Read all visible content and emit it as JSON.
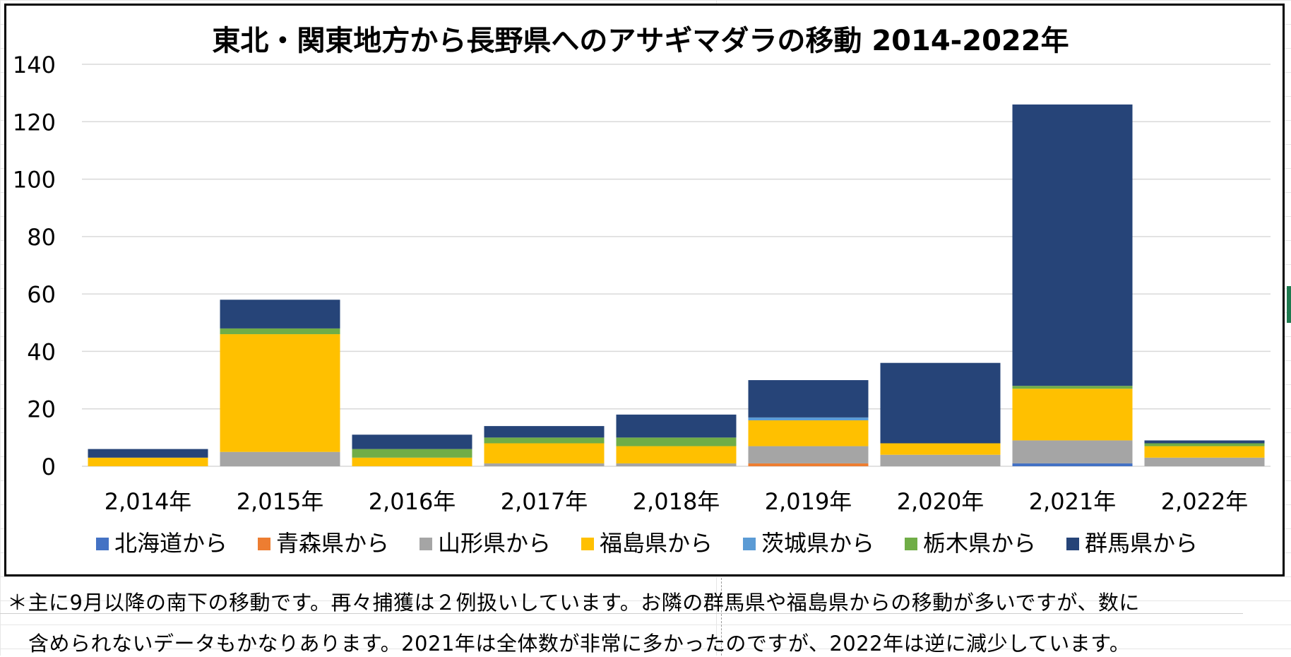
{
  "chart_data": {
    "type": "bar",
    "stacked": true,
    "title": "東北・関東地方から長野県へのアサギマダラの移動 2014-2022年",
    "categories": [
      "2,014年",
      "2,015年",
      "2,016年",
      "2,017年",
      "2,018年",
      "2,019年",
      "2,020年",
      "2,021年",
      "2,022年"
    ],
    "ylim": [
      0,
      140
    ],
    "yticks": [
      0,
      20,
      40,
      60,
      80,
      100,
      120,
      140
    ],
    "grid": true,
    "legend": "bottom",
    "series": [
      {
        "name": "北海道から",
        "color": "#4472C4",
        "values": [
          0,
          0,
          0,
          0,
          0,
          0,
          0,
          1,
          0
        ]
      },
      {
        "name": "青森県から",
        "color": "#ED7D31",
        "values": [
          0,
          0,
          0,
          0,
          0,
          1,
          0,
          0,
          0
        ]
      },
      {
        "name": "山形県から",
        "color": "#A5A5A5",
        "values": [
          0,
          5,
          0,
          1,
          1,
          6,
          4,
          8,
          3
        ]
      },
      {
        "name": "福島県から",
        "color": "#FFC000",
        "values": [
          3,
          41,
          3,
          7,
          6,
          9,
          4,
          18,
          4
        ]
      },
      {
        "name": "茨城県から",
        "color": "#5B9BD5",
        "values": [
          0,
          0,
          0,
          0,
          0,
          1,
          0,
          0,
          0
        ]
      },
      {
        "name": "栃木県から",
        "color": "#70AD47",
        "values": [
          0,
          2,
          3,
          2,
          3,
          0,
          0,
          1,
          1
        ]
      },
      {
        "name": "群馬県から",
        "color": "#264478",
        "values": [
          3,
          10,
          5,
          4,
          8,
          13,
          28,
          98,
          1
        ]
      }
    ]
  },
  "notes": {
    "line1": "＊主に9月以降の南下の移動です。再々捕獲は２例扱いしています。お隣の群馬県や福島県からの移動が多いですが、数に",
    "line2": "含められないデータもかなりあります。2021年は全体数が非常に多かったのですが、2022年は逆に減少しています。"
  }
}
